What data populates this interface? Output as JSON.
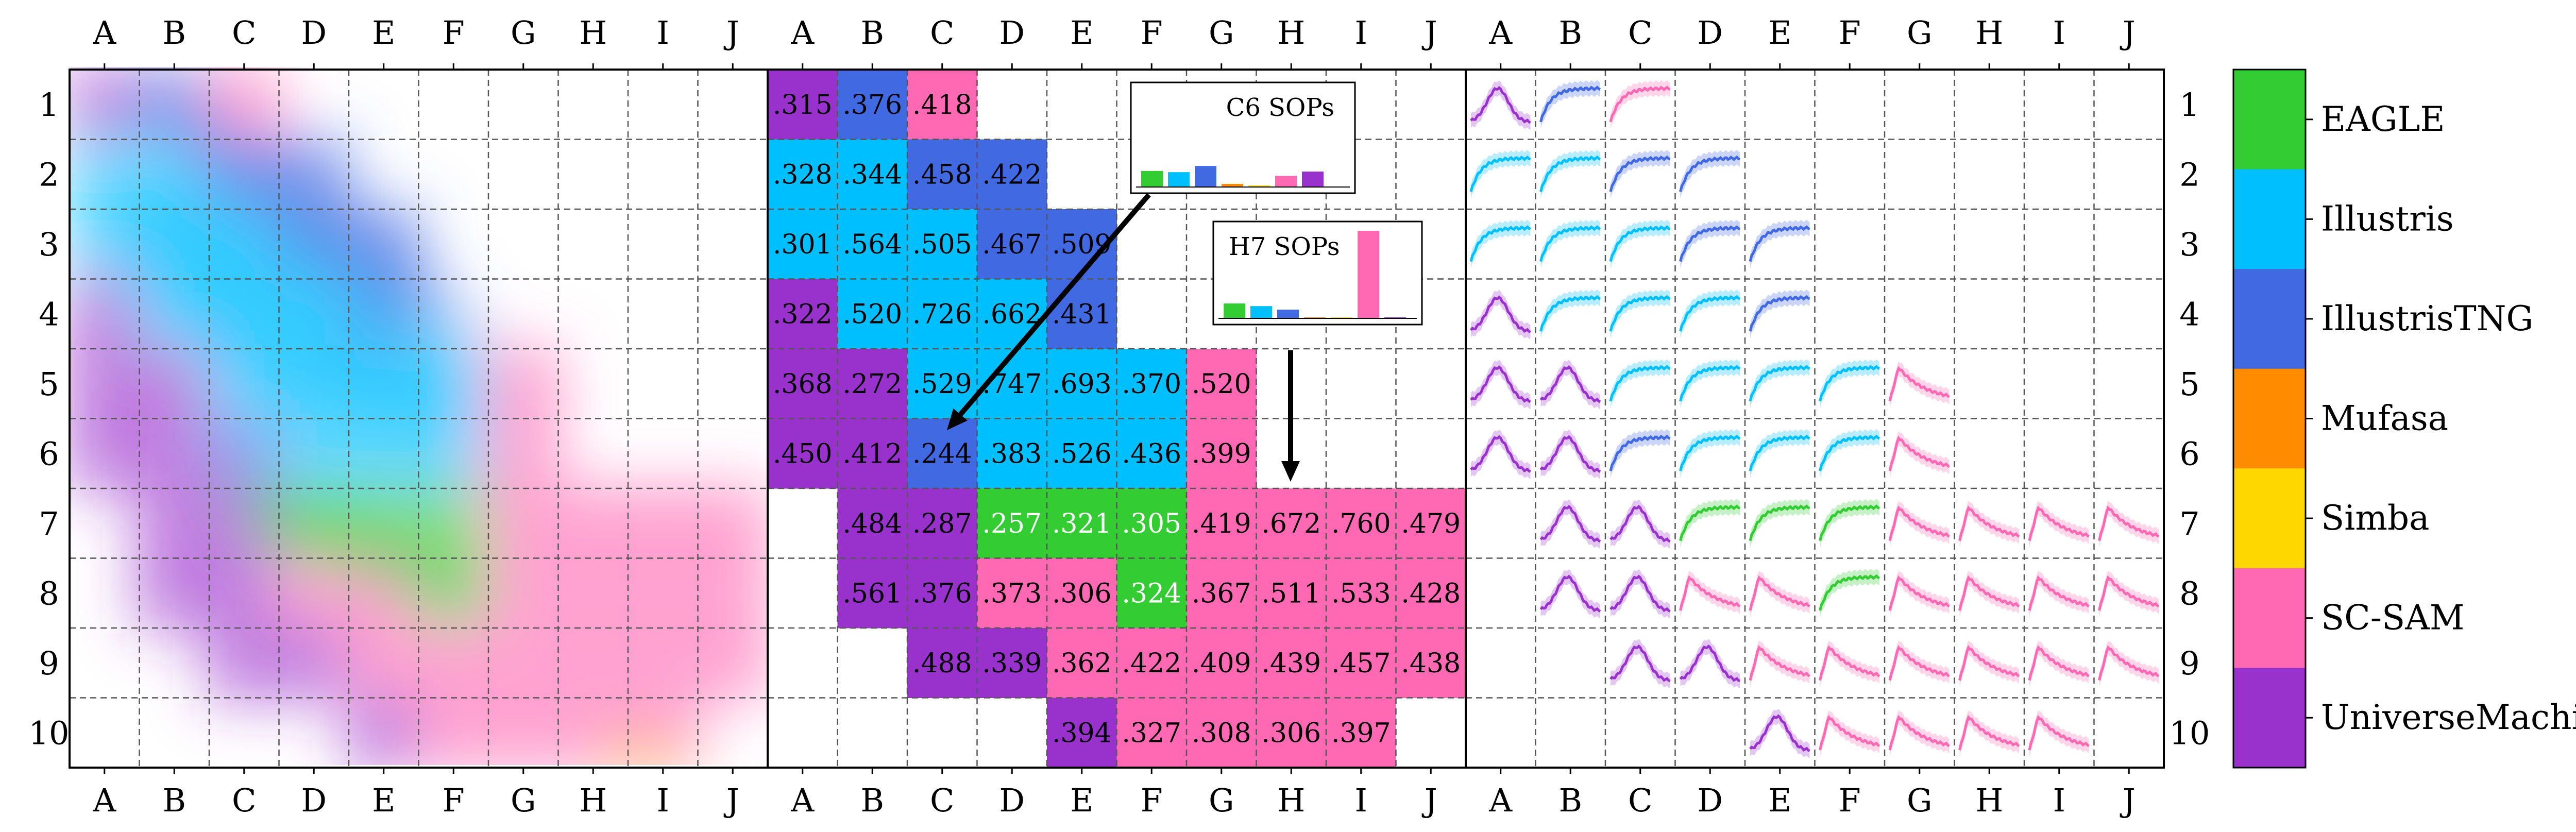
{
  "chart_data": {
    "type": "heatmap",
    "title": "",
    "columns": [
      "A",
      "B",
      "C",
      "D",
      "E",
      "F",
      "G",
      "H",
      "I",
      "J"
    ],
    "rows": [
      "1",
      "2",
      "3",
      "4",
      "5",
      "6",
      "7",
      "8",
      "9",
      "10"
    ],
    "grid": "dashed",
    "legend_position": "right",
    "models": [
      {
        "name": "EAGLE",
        "color": "#33cc33"
      },
      {
        "name": "Illustris",
        "color": "#00bfff"
      },
      {
        "name": "IllustrisTNG",
        "color": "#4169e1"
      },
      {
        "name": "Mufasa",
        "color": "#ff8c00"
      },
      {
        "name": "Simba",
        "color": "#ffd700"
      },
      {
        "name": "SC-SAM",
        "color": "#ff69b4"
      },
      {
        "name": "UniverseMachine",
        "color": "#9932cc"
      }
    ],
    "cells": [
      {
        "cell": "A1",
        "text": ".315",
        "model": "UniverseMachine"
      },
      {
        "cell": "B1",
        "text": ".376",
        "model": "IllustrisTNG"
      },
      {
        "cell": "C1",
        "text": ".418",
        "model": "SC-SAM"
      },
      {
        "cell": "A2",
        "text": ".328",
        "model": "Illustris"
      },
      {
        "cell": "B2",
        "text": ".344",
        "model": "Illustris"
      },
      {
        "cell": "C2",
        "text": ".458",
        "model": "IllustrisTNG"
      },
      {
        "cell": "D2",
        "text": ".422",
        "model": "IllustrisTNG"
      },
      {
        "cell": "A3",
        "text": ".301",
        "model": "Illustris"
      },
      {
        "cell": "B3",
        "text": ".564",
        "model": "Illustris"
      },
      {
        "cell": "C3",
        "text": ".505",
        "model": "Illustris"
      },
      {
        "cell": "D3",
        "text": ".467",
        "model": "IllustrisTNG"
      },
      {
        "cell": "E3",
        "text": ".509",
        "model": "IllustrisTNG"
      },
      {
        "cell": "A4",
        "text": ".322",
        "model": "UniverseMachine"
      },
      {
        "cell": "B4",
        "text": ".520",
        "model": "Illustris"
      },
      {
        "cell": "C4",
        "text": ".726",
        "model": "Illustris"
      },
      {
        "cell": "D4",
        "text": ".662",
        "model": "Illustris"
      },
      {
        "cell": "E4",
        "text": ".431",
        "model": "IllustrisTNG"
      },
      {
        "cell": "A5",
        "text": ".368",
        "model": "UniverseMachine"
      },
      {
        "cell": "B5",
        "text": ".272",
        "model": "UniverseMachine"
      },
      {
        "cell": "C5",
        "text": ".529",
        "model": "Illustris"
      },
      {
        "cell": "D5",
        "text": ".747",
        "model": "Illustris"
      },
      {
        "cell": "E5",
        "text": ".693",
        "model": "Illustris"
      },
      {
        "cell": "F5",
        "text": ".370",
        "model": "Illustris"
      },
      {
        "cell": "G5",
        "text": ".520",
        "model": "SC-SAM"
      },
      {
        "cell": "A6",
        "text": ".450",
        "model": "UniverseMachine"
      },
      {
        "cell": "B6",
        "text": ".412",
        "model": "UniverseMachine"
      },
      {
        "cell": "C6",
        "text": ".244",
        "model": "IllustrisTNG"
      },
      {
        "cell": "D6",
        "text": ".383",
        "model": "Illustris"
      },
      {
        "cell": "E6",
        "text": ".526",
        "model": "Illustris"
      },
      {
        "cell": "F6",
        "text": ".436",
        "model": "Illustris"
      },
      {
        "cell": "G6",
        "text": ".399",
        "model": "SC-SAM"
      },
      {
        "cell": "B7",
        "text": ".484",
        "model": "UniverseMachine"
      },
      {
        "cell": "C7",
        "text": ".287",
        "model": "UniverseMachine"
      },
      {
        "cell": "D7",
        "text": ".257",
        "model": "EAGLE"
      },
      {
        "cell": "E7",
        "text": ".321",
        "model": "EAGLE"
      },
      {
        "cell": "F7",
        "text": ".305",
        "model": "EAGLE"
      },
      {
        "cell": "G7",
        "text": ".419",
        "model": "SC-SAM"
      },
      {
        "cell": "H7",
        "text": ".672",
        "model": "SC-SAM"
      },
      {
        "cell": "I7",
        "text": ".760",
        "model": "SC-SAM"
      },
      {
        "cell": "J7",
        "text": ".479",
        "model": "SC-SAM"
      },
      {
        "cell": "B8",
        "text": ".561",
        "model": "UniverseMachine"
      },
      {
        "cell": "C8",
        "text": ".376",
        "model": "UniverseMachine"
      },
      {
        "cell": "D8",
        "text": ".373",
        "model": "SC-SAM"
      },
      {
        "cell": "E8",
        "text": ".306",
        "model": "SC-SAM"
      },
      {
        "cell": "F8",
        "text": ".324",
        "model": "EAGLE"
      },
      {
        "cell": "G8",
        "text": ".367",
        "model": "SC-SAM"
      },
      {
        "cell": "H8",
        "text": ".511",
        "model": "SC-SAM"
      },
      {
        "cell": "I8",
        "text": ".533",
        "model": "SC-SAM"
      },
      {
        "cell": "J8",
        "text": ".428",
        "model": "SC-SAM"
      },
      {
        "cell": "C9",
        "text": ".488",
        "model": "UniverseMachine"
      },
      {
        "cell": "D9",
        "text": ".339",
        "model": "UniverseMachine"
      },
      {
        "cell": "E9",
        "text": ".362",
        "model": "SC-SAM"
      },
      {
        "cell": "F9",
        "text": ".422",
        "model": "SC-SAM"
      },
      {
        "cell": "G9",
        "text": ".409",
        "model": "SC-SAM"
      },
      {
        "cell": "H9",
        "text": ".439",
        "model": "SC-SAM"
      },
      {
        "cell": "I9",
        "text": ".457",
        "model": "SC-SAM"
      },
      {
        "cell": "J9",
        "text": ".438",
        "model": "SC-SAM"
      },
      {
        "cell": "E10",
        "text": ".394",
        "model": "UniverseMachine"
      },
      {
        "cell": "F10",
        "text": ".327",
        "model": "SC-SAM"
      },
      {
        "cell": "G10",
        "text": ".308",
        "model": "SC-SAM"
      },
      {
        "cell": "H10",
        "text": ".306",
        "model": "SC-SAM"
      },
      {
        "cell": "I10",
        "text": ".397",
        "model": "SC-SAM"
      }
    ],
    "insets": [
      {
        "title": "C6 SOPs",
        "points_to": "C6",
        "bars": [
          {
            "model": "EAGLE",
            "value": 0.52
          },
          {
            "model": "Illustris",
            "value": 0.48
          },
          {
            "model": "IllustrisTNG",
            "value": 0.68
          },
          {
            "model": "Mufasa",
            "value": 0.1
          },
          {
            "model": "Simba",
            "value": 0.05
          },
          {
            "model": "SC-SAM",
            "value": 0.36
          },
          {
            "model": "UniverseMachine",
            "value": 0.5
          }
        ]
      },
      {
        "title": "H7 SOPs",
        "points_to": "H7",
        "bars": [
          {
            "model": "EAGLE",
            "value": 0.17
          },
          {
            "model": "Illustris",
            "value": 0.14
          },
          {
            "model": "IllustrisTNG",
            "value": 0.1
          },
          {
            "model": "Mufasa",
            "value": 0.0
          },
          {
            "model": "Simba",
            "value": 0.0
          },
          {
            "model": "SC-SAM",
            "value": 1.0
          },
          {
            "model": "UniverseMachine",
            "value": 0.0
          }
        ]
      }
    ],
    "curve_cells": [
      {
        "cell": "A1",
        "model": "UniverseMachine"
      },
      {
        "cell": "B1",
        "model": "IllustrisTNG"
      },
      {
        "cell": "C1",
        "model": "SC-SAM"
      },
      {
        "cell": "A2",
        "model": "Illustris"
      },
      {
        "cell": "B2",
        "model": "Illustris"
      },
      {
        "cell": "C2",
        "model": "IllustrisTNG"
      },
      {
        "cell": "D2",
        "model": "IllustrisTNG"
      },
      {
        "cell": "A3",
        "model": "Illustris"
      },
      {
        "cell": "B3",
        "model": "Illustris"
      },
      {
        "cell": "C3",
        "model": "Illustris"
      },
      {
        "cell": "D3",
        "model": "IllustrisTNG"
      },
      {
        "cell": "E3",
        "model": "IllustrisTNG"
      },
      {
        "cell": "A4",
        "model": "UniverseMachine"
      },
      {
        "cell": "B4",
        "model": "Illustris"
      },
      {
        "cell": "C4",
        "model": "Illustris"
      },
      {
        "cell": "D4",
        "model": "Illustris"
      },
      {
        "cell": "E4",
        "model": "IllustrisTNG"
      },
      {
        "cell": "A5",
        "model": "UniverseMachine"
      },
      {
        "cell": "B5",
        "model": "UniverseMachine"
      },
      {
        "cell": "C5",
        "model": "Illustris"
      },
      {
        "cell": "D5",
        "model": "Illustris"
      },
      {
        "cell": "E5",
        "model": "Illustris"
      },
      {
        "cell": "F5",
        "model": "Illustris"
      },
      {
        "cell": "G5",
        "model": "SC-SAM"
      },
      {
        "cell": "A6",
        "model": "UniverseMachine"
      },
      {
        "cell": "B6",
        "model": "UniverseMachine"
      },
      {
        "cell": "C6",
        "model": "IllustrisTNG"
      },
      {
        "cell": "D6",
        "model": "Illustris"
      },
      {
        "cell": "E6",
        "model": "Illustris"
      },
      {
        "cell": "F6",
        "model": "Illustris"
      },
      {
        "cell": "G6",
        "model": "SC-SAM"
      },
      {
        "cell": "B7",
        "model": "UniverseMachine"
      },
      {
        "cell": "C7",
        "model": "UniverseMachine"
      },
      {
        "cell": "D7",
        "model": "EAGLE"
      },
      {
        "cell": "E7",
        "model": "EAGLE"
      },
      {
        "cell": "F7",
        "model": "EAGLE"
      },
      {
        "cell": "G7",
        "model": "SC-SAM"
      },
      {
        "cell": "H7",
        "model": "SC-SAM"
      },
      {
        "cell": "I7",
        "model": "SC-SAM"
      },
      {
        "cell": "J7",
        "model": "SC-SAM"
      },
      {
        "cell": "B8",
        "model": "UniverseMachine"
      },
      {
        "cell": "C8",
        "model": "UniverseMachine"
      },
      {
        "cell": "D8",
        "model": "SC-SAM"
      },
      {
        "cell": "E8",
        "model": "SC-SAM"
      },
      {
        "cell": "F8",
        "model": "EAGLE"
      },
      {
        "cell": "G8",
        "model": "SC-SAM"
      },
      {
        "cell": "H8",
        "model": "SC-SAM"
      },
      {
        "cell": "I8",
        "model": "SC-SAM"
      },
      {
        "cell": "J8",
        "model": "SC-SAM"
      },
      {
        "cell": "C9",
        "model": "UniverseMachine"
      },
      {
        "cell": "D9",
        "model": "UniverseMachine"
      },
      {
        "cell": "E9",
        "model": "SC-SAM"
      },
      {
        "cell": "F9",
        "model": "SC-SAM"
      },
      {
        "cell": "G9",
        "model": "SC-SAM"
      },
      {
        "cell": "H9",
        "model": "SC-SAM"
      },
      {
        "cell": "I9",
        "model": "SC-SAM"
      },
      {
        "cell": "J9",
        "model": "SC-SAM"
      },
      {
        "cell": "E10",
        "model": "UniverseMachine"
      },
      {
        "cell": "F10",
        "model": "SC-SAM"
      },
      {
        "cell": "G10",
        "model": "SC-SAM"
      },
      {
        "cell": "H10",
        "model": "SC-SAM"
      },
      {
        "cell": "I10",
        "model": "SC-SAM"
      }
    ]
  }
}
